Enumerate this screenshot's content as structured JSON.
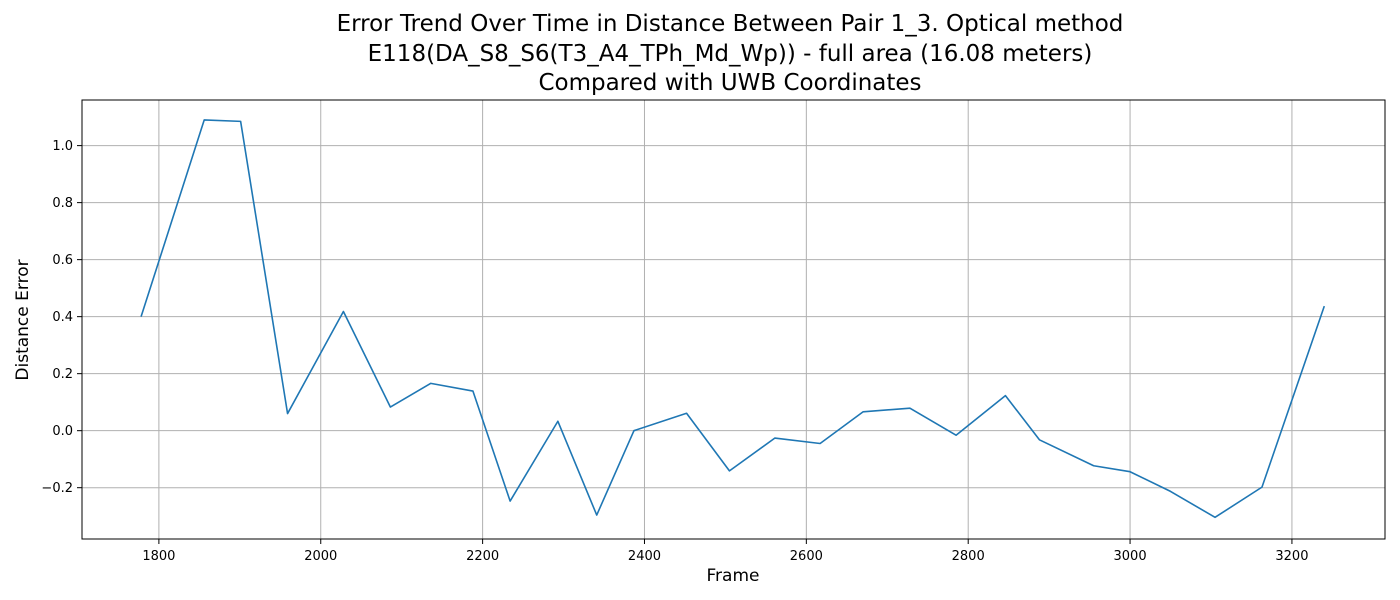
{
  "chart_data": {
    "type": "line",
    "title_lines": [
      "Error Trend Over Time in Distance Between Pair 1_3. Optical method",
      "E118(DA_S8_S6(T3_A4_TPh_Md_Wp)) - full area (16.08 meters)",
      "Compared with UWB Coordinates"
    ],
    "xlabel": "Frame",
    "ylabel": "Distance Error",
    "xlim": [
      1705,
      3315
    ],
    "ylim": [
      -0.38,
      1.16
    ],
    "xticks": [
      1800,
      2000,
      2200,
      2400,
      2600,
      2800,
      3000,
      3200
    ],
    "yticks": [
      -0.2,
      0.0,
      0.2,
      0.4,
      0.6,
      0.8,
      1.0
    ],
    "ytick_labels": [
      "−0.2",
      "0.0",
      "0.2",
      "0.4",
      "0.6",
      "0.8",
      "1.0"
    ],
    "grid": true,
    "line_color": "#1f77b4",
    "x": [
      1778,
      1856,
      1901,
      1959,
      2028,
      2086,
      2136,
      2188,
      2234,
      2293,
      2341,
      2387,
      2452,
      2505,
      2561,
      2617,
      2670,
      2728,
      2785,
      2846,
      2888,
      2955,
      3000,
      3050,
      3105,
      3163,
      3240
    ],
    "y": [
      0.4,
      1.09,
      1.085,
      0.06,
      0.418,
      0.083,
      0.166,
      0.139,
      -0.247,
      0.033,
      -0.296,
      0.0,
      0.061,
      -0.141,
      -0.026,
      -0.045,
      0.066,
      0.079,
      -0.016,
      0.123,
      -0.032,
      -0.123,
      -0.144,
      -0.213,
      -0.304,
      -0.198,
      0.437
    ]
  }
}
